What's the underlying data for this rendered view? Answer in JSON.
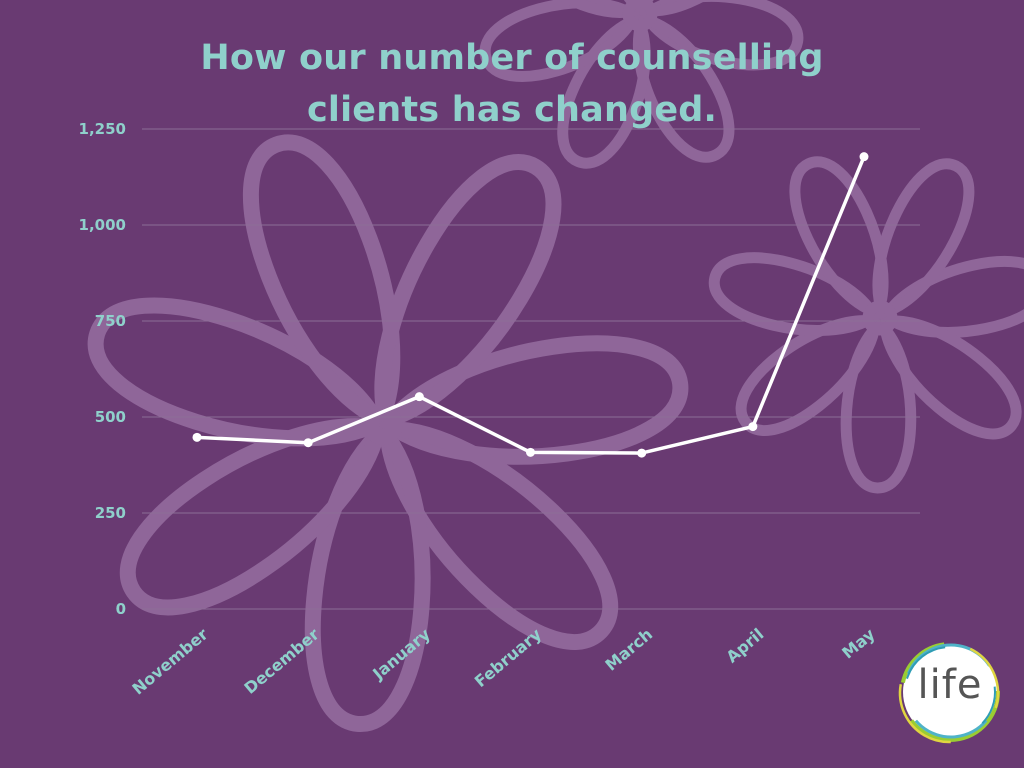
{
  "chart_data": {
    "type": "line",
    "title_lines": [
      "How our number of counselling",
      "clients has changed."
    ],
    "categories": [
      "November",
      "December",
      "January",
      "February",
      "March",
      "April",
      "May"
    ],
    "values": [
      447,
      433,
      553,
      408,
      406,
      475,
      1178
    ],
    "ylim": [
      0,
      1250
    ],
    "yticks": [
      0,
      250,
      500,
      750,
      1000,
      1250
    ],
    "ytick_labels": [
      "0",
      "250",
      "500",
      "750",
      "1,000",
      "1,250"
    ],
    "grid": true,
    "line_color": "#ffffff",
    "tick_color": "#8fd0cb"
  },
  "colors": {
    "background": "#693a72",
    "title": "#8fd0cb",
    "flower": "#8f6699",
    "gridline": "#8c6d96"
  },
  "logo": {
    "text": "life",
    "icon": "life-logo-icon"
  },
  "decoration": {
    "icon": "flower-background-icon"
  }
}
